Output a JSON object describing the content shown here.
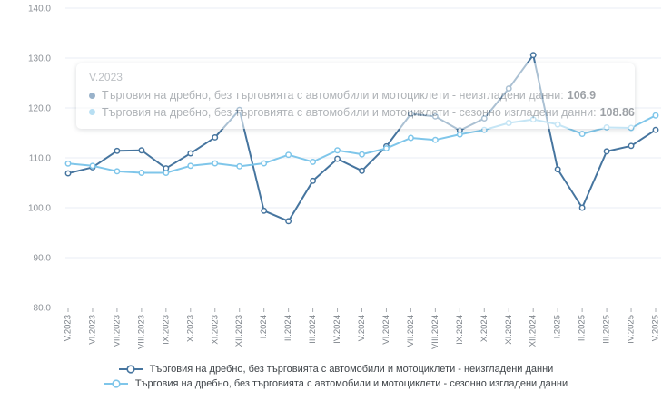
{
  "chart_data": {
    "type": "line",
    "title": "",
    "xlabel": "",
    "ylabel": "",
    "grid": true,
    "legend_position": "bottom",
    "ylim": [
      80,
      140
    ],
    "ytick_step": 10,
    "categories": [
      "V.2023",
      "VI.2023",
      "VII.2023",
      "VIII.2023",
      "IX.2023",
      "X.2023",
      "XI.2023",
      "XII.2023",
      "I.2024",
      "II.2024",
      "III.2024",
      "IV.2024",
      "V.2024",
      "VI.2024",
      "VII.2024",
      "VIII.2024",
      "IX.2024",
      "X.2024",
      "XI.2024",
      "XII.2024",
      "I.2025",
      "II.2025",
      "III.2025",
      "IV.2025",
      "V.2025"
    ],
    "series": [
      {
        "id": "unadjusted",
        "name": "Търговия на дребно, без търговията с автомобили и мотоциклети - неизгладени данни",
        "color": "#46759f",
        "values": [
          106.9,
          108.1,
          111.4,
          111.5,
          107.9,
          110.9,
          114.1,
          119.6,
          99.4,
          97.3,
          105.4,
          109.8,
          107.4,
          112.3,
          118.8,
          118.3,
          115.5,
          117.9,
          123.9,
          130.6,
          107.7,
          100.0,
          111.3,
          112.4,
          115.6
        ]
      },
      {
        "id": "adjusted",
        "name": "Търговия на дребно, без търговията с автомобили и мотоциклети - сезонно изгладени данни",
        "color": "#7fc6ea",
        "values": [
          108.86,
          108.4,
          107.3,
          107.0,
          107.0,
          108.4,
          108.9,
          108.3,
          108.9,
          110.6,
          109.2,
          111.5,
          110.7,
          111.9,
          114.0,
          113.6,
          114.7,
          115.6,
          117.0,
          117.7,
          116.7,
          114.8,
          116.1,
          116.0,
          118.5
        ]
      }
    ],
    "colors": {
      "grid": "#e9eef5",
      "axis": "#a8acb1",
      "ytick": "#8d9298",
      "xtick": "#7e848b"
    }
  },
  "tooltip": {
    "title": "V.2023",
    "rows": [
      {
        "label": "Търговия на дребно, без търговията с автомобили и мотоциклети - неизгладени данни:",
        "value": "106.9"
      },
      {
        "label": "Търговия на дребно, без търговията с автомобили и мотоциклети - сезонно изгладени данни:",
        "value": "108.86"
      }
    ]
  },
  "legend": {
    "items": [
      {
        "label": "Търговия на дребно, без търговията с автомобили и мотоциклети - неизгладени данни"
      },
      {
        "label": "Търговия на дребно, без търговията с автомобили и мотоциклети - сезонно изгладени данни"
      }
    ]
  }
}
